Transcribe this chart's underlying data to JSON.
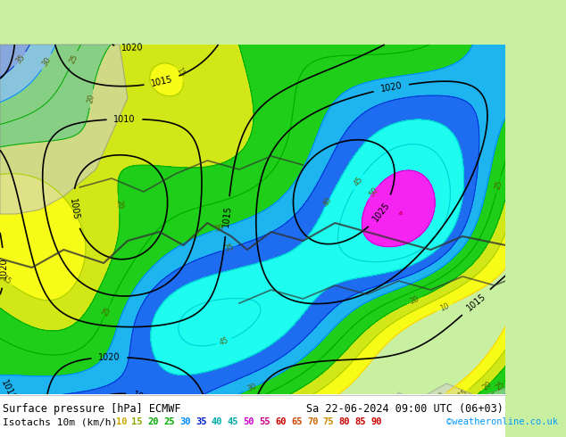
{
  "bg_color": "#c8f0a0",
  "map_bg": "#c8f0a0",
  "title_left": "Surface pressure [hPa] ECMWF",
  "title_right": "Sa 22-06-2024 09:00 UTC (06+03)",
  "legend_label": "Isotachs 10m (km/h)",
  "legend_values": [
    10,
    15,
    20,
    25,
    30,
    35,
    40,
    45,
    50,
    55,
    60,
    65,
    70,
    75,
    80,
    85,
    90
  ],
  "legend_colors": [
    "#ffff00",
    "#d4e600",
    "#00c800",
    "#00c800",
    "#00aaff",
    "#0055ff",
    "#00ffff",
    "#00ffff",
    "#ff00ff",
    "#ff00aa",
    "#ff0000",
    "#ff5500",
    "#ff8800",
    "#ffaa00",
    "#ffcc00",
    "#ffee00",
    "#ffffff"
  ],
  "credit": "©weatheronline.co.uk",
  "credit_color": "#0099ff",
  "font_color_title": "#000000",
  "bottom_bar_height": 490,
  "figsize": [
    6.34,
    4.9
  ],
  "dpi": 100
}
